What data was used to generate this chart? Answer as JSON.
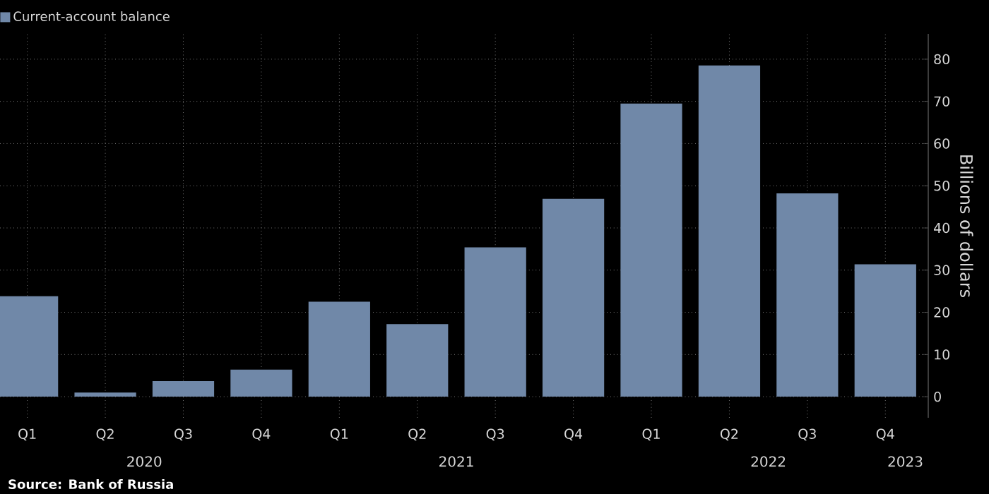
{
  "chart_data": {
    "type": "bar",
    "ylabel": "Billions of dollars",
    "categories": [
      "Q1",
      "Q2",
      "Q3",
      "Q4",
      "Q1",
      "Q2",
      "Q3",
      "Q4",
      "Q1",
      "Q2",
      "Q3",
      "Q4"
    ],
    "series": [
      {
        "name": "Current-account balance",
        "color": "#7088a8",
        "values": [
          23.8,
          1.0,
          3.7,
          6.4,
          22.5,
          17.2,
          35.4,
          46.9,
          69.5,
          78.5,
          48.2,
          31.4
        ]
      }
    ],
    "ylim": [
      -5,
      86
    ],
    "yticks": [
      0,
      10,
      20,
      30,
      40,
      50,
      60,
      70,
      80
    ],
    "grid": true,
    "legend": "top left",
    "annotations": [
      "2020",
      "2021",
      "2022",
      "2023",
      "Source: Bank of Russia"
    ]
  }
}
